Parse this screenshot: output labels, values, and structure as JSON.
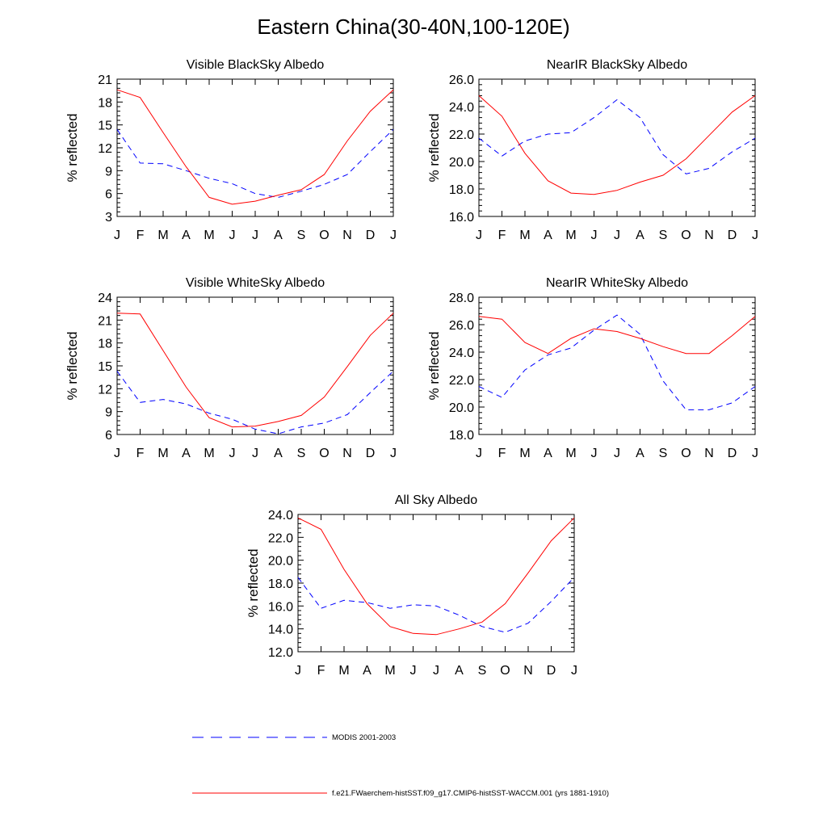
{
  "figure": {
    "title": "Eastern China(30-40N,100-120E)"
  },
  "legend": {
    "entries": [
      {
        "label": "MODIS 2001-2003",
        "color": "#0000ff",
        "style": "dashed"
      },
      {
        "label": "f.e21.FWaerchem-histSST.f09_g17.CMIP6-histSST-WACCM.001 (yrs 1881-1910)",
        "color": "#ff0000",
        "style": "solid"
      }
    ]
  },
  "chart_data": [
    {
      "type": "line",
      "title": "Visible BlackSky Albedo",
      "xlabel": "",
      "ylabel": "% reflected",
      "categories": [
        "J",
        "F",
        "M",
        "A",
        "M",
        "J",
        "J",
        "A",
        "S",
        "O",
        "N",
        "D",
        "J"
      ],
      "ylim": [
        3,
        21
      ],
      "yticks": [
        "3",
        "6",
        "9",
        "12",
        "15",
        "18",
        "21"
      ],
      "series": [
        {
          "values": [
            14.4,
            10.0,
            9.9,
            9.0,
            8.0,
            7.3,
            6.0,
            5.5,
            6.3,
            7.2,
            8.5,
            11.5,
            14.4
          ],
          "color": "#0000ff",
          "dash": true
        },
        {
          "values": [
            19.6,
            18.6,
            14.0,
            9.5,
            5.5,
            4.6,
            5.0,
            5.8,
            6.5,
            8.5,
            12.9,
            16.8,
            19.6
          ],
          "color": "#ff0000",
          "dash": false
        }
      ]
    },
    {
      "type": "line",
      "title": "NearIR BlackSky Albedo",
      "xlabel": "",
      "ylabel": "% reflected",
      "categories": [
        "J",
        "F",
        "M",
        "A",
        "M",
        "J",
        "J",
        "A",
        "S",
        "O",
        "N",
        "D",
        "J"
      ],
      "ylim": [
        16,
        26
      ],
      "yticks": [
        "16.0",
        "18.0",
        "20.0",
        "22.0",
        "24.0",
        "26.0"
      ],
      "series": [
        {
          "values": [
            21.7,
            20.4,
            21.5,
            22.0,
            22.1,
            23.2,
            24.5,
            23.2,
            20.5,
            19.1,
            19.5,
            20.7,
            21.7
          ],
          "color": "#0000ff",
          "dash": true
        },
        {
          "values": [
            24.8,
            23.3,
            20.6,
            18.6,
            17.7,
            17.6,
            17.9,
            18.5,
            19.0,
            20.2,
            21.9,
            23.6,
            24.8
          ],
          "color": "#ff0000",
          "dash": false
        }
      ]
    },
    {
      "type": "line",
      "title": "Visible WhiteSky Albedo",
      "xlabel": "",
      "ylabel": "% reflected",
      "categories": [
        "J",
        "F",
        "M",
        "A",
        "M",
        "J",
        "J",
        "A",
        "S",
        "O",
        "N",
        "D",
        "J"
      ],
      "ylim": [
        6,
        24
      ],
      "yticks": [
        "6",
        "9",
        "12",
        "15",
        "18",
        "21",
        "24"
      ],
      "series": [
        {
          "values": [
            14.3,
            10.2,
            10.6,
            10.0,
            8.8,
            8.0,
            6.7,
            6.1,
            7.0,
            7.5,
            8.6,
            11.5,
            14.3
          ],
          "color": "#0000ff",
          "dash": true
        },
        {
          "values": [
            21.9,
            21.8,
            17.0,
            12.2,
            8.2,
            7.0,
            7.1,
            7.7,
            8.5,
            10.9,
            14.9,
            19.0,
            21.9
          ],
          "color": "#ff0000",
          "dash": false
        }
      ]
    },
    {
      "type": "line",
      "title": "NearIR WhiteSky Albedo",
      "xlabel": "",
      "ylabel": "% reflected",
      "categories": [
        "J",
        "F",
        "M",
        "A",
        "M",
        "J",
        "J",
        "A",
        "S",
        "O",
        "N",
        "D",
        "J"
      ],
      "ylim": [
        18,
        28
      ],
      "yticks": [
        "18.0",
        "20.0",
        "22.0",
        "24.0",
        "26.0",
        "28.0"
      ],
      "series": [
        {
          "values": [
            21.5,
            20.7,
            22.7,
            23.8,
            24.3,
            25.6,
            26.7,
            25.3,
            21.9,
            19.8,
            19.8,
            20.3,
            21.5
          ],
          "color": "#0000ff",
          "dash": true
        },
        {
          "values": [
            26.6,
            26.4,
            24.7,
            23.9,
            25.0,
            25.7,
            25.5,
            25.0,
            24.4,
            23.9,
            23.9,
            25.2,
            26.6
          ],
          "color": "#ff0000",
          "dash": false
        }
      ]
    },
    {
      "type": "line",
      "title": "All Sky Albedo",
      "xlabel": "",
      "ylabel": "% reflected",
      "categories": [
        "J",
        "F",
        "M",
        "A",
        "M",
        "J",
        "J",
        "A",
        "S",
        "O",
        "N",
        "D",
        "J"
      ],
      "ylim": [
        12,
        24
      ],
      "yticks": [
        "12.0",
        "14.0",
        "16.0",
        "18.0",
        "20.0",
        "22.0",
        "24.0"
      ],
      "series": [
        {
          "values": [
            18.5,
            15.8,
            16.5,
            16.3,
            15.8,
            16.1,
            16.0,
            15.2,
            14.2,
            13.7,
            14.5,
            16.4,
            18.5
          ],
          "color": "#0000ff",
          "dash": true
        },
        {
          "values": [
            23.7,
            22.7,
            19.2,
            16.2,
            14.2,
            13.6,
            13.5,
            14.0,
            14.6,
            16.2,
            18.9,
            21.7,
            23.7
          ],
          "color": "#ff0000",
          "dash": false
        }
      ]
    }
  ]
}
